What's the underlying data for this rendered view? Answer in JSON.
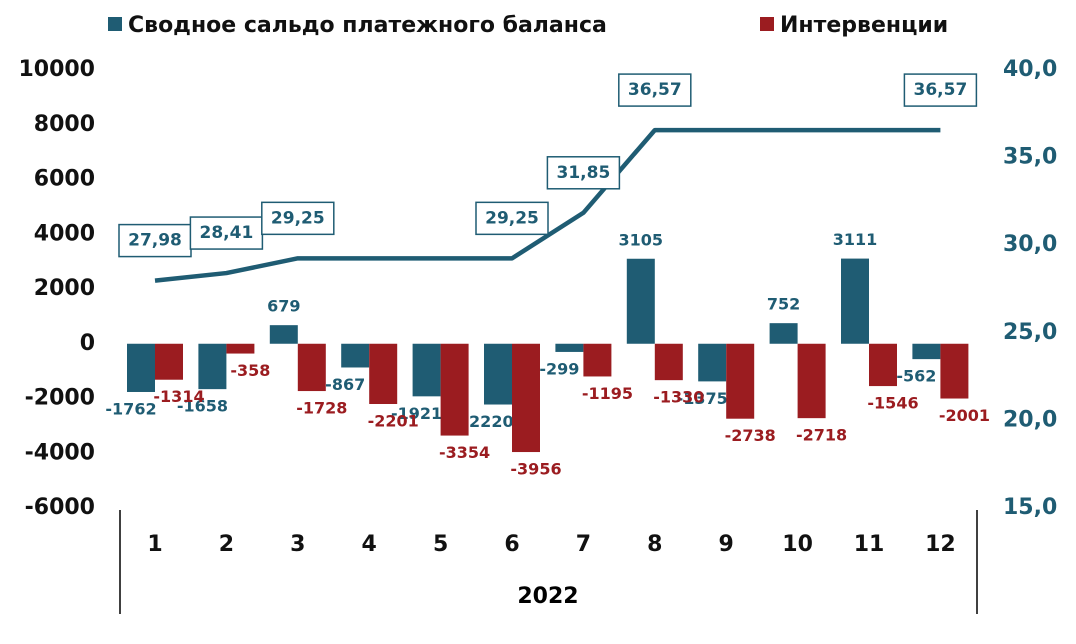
{
  "chart_data": {
    "type": "bar",
    "categories": [
      "1",
      "2",
      "3",
      "4",
      "5",
      "6",
      "7",
      "8",
      "9",
      "10",
      "11",
      "12"
    ],
    "x_label": "2022",
    "series": [
      {
        "name": "Сводное сальдо платежного баланса",
        "color": "#1f5c73",
        "values": [
          -1762,
          -1658,
          679,
          -867,
          -1921,
          -2220,
          -299,
          3105,
          -1375,
          752,
          3111,
          -562
        ]
      },
      {
        "name": "Интервенции",
        "color": "#9b1c20",
        "values": [
          -1314,
          -358,
          -1728,
          -2201,
          -3354,
          -3956,
          -1195,
          -1330,
          -2738,
          -2718,
          -1546,
          -2001
        ]
      },
      {
        "type": "line",
        "axis": "y2",
        "color": "#1f5c73",
        "values": [
          27.98,
          28.41,
          29.25,
          29.25,
          29.25,
          29.25,
          31.85,
          36.57,
          36.57,
          36.57,
          36.57,
          36.57
        ],
        "value_labels": [
          "27,98",
          "28,41",
          "29,25",
          null,
          null,
          "29,25",
          "31,85",
          "36,57",
          null,
          null,
          null,
          "36,57"
        ]
      }
    ],
    "ylim": [
      -6000,
      10000
    ],
    "yticks": [
      -6000,
      -4000,
      -2000,
      0,
      2000,
      4000,
      6000,
      8000,
      10000
    ],
    "y2lim": [
      15,
      40
    ],
    "y2ticks": [
      {
        "value": 15,
        "label": "15,0"
      },
      {
        "value": 20,
        "label": "20,0"
      },
      {
        "value": 25,
        "label": "25,0"
      },
      {
        "value": 30,
        "label": "30,0"
      },
      {
        "value": 35,
        "label": "35,0"
      },
      {
        "value": 40,
        "label": "40,0"
      }
    ],
    "grid": false,
    "legend": "top"
  }
}
